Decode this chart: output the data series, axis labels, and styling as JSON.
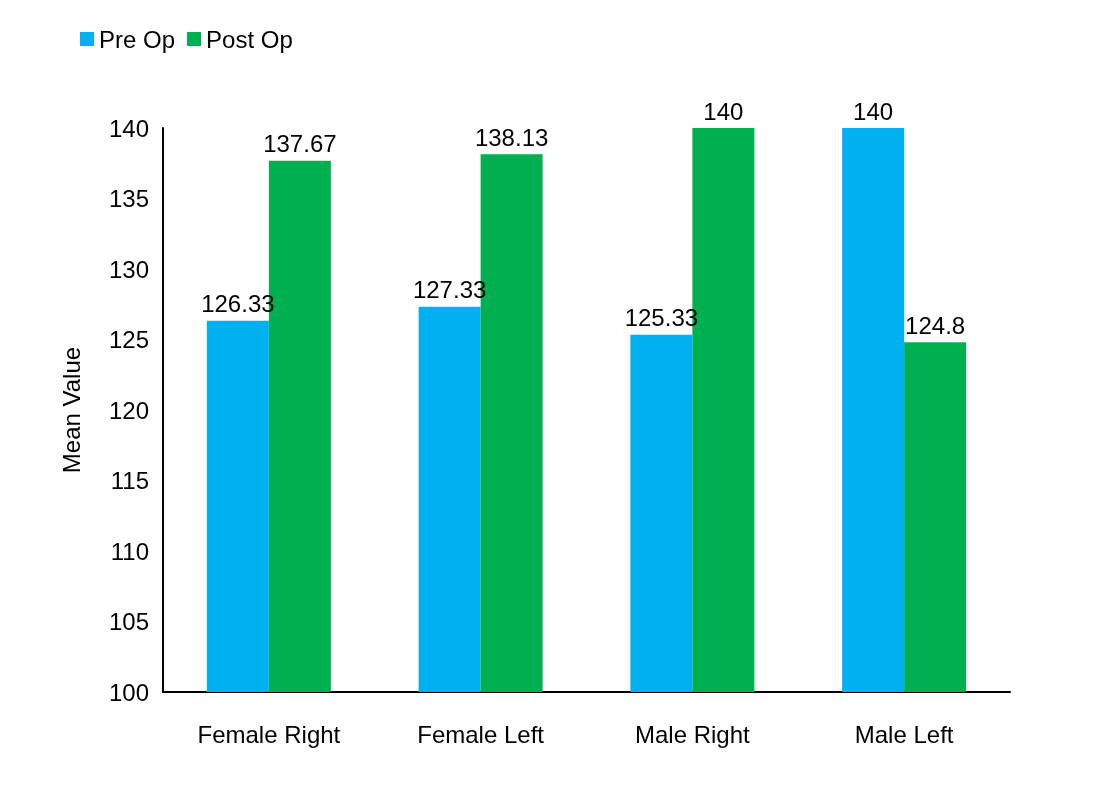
{
  "chart_data": {
    "type": "bar",
    "ylabel": "Mean Value",
    "categories": [
      "Female Right",
      "Female Left",
      "Male Right",
      "Male Left"
    ],
    "series": [
      {
        "name": "Pre Op",
        "color": "#00b0f0",
        "values": [
          126.33,
          127.33,
          125.33,
          140
        ]
      },
      {
        "name": "Post Op",
        "color": "#00b050",
        "values": [
          137.67,
          138.13,
          140,
          124.8
        ]
      }
    ],
    "ylim": [
      100,
      140
    ],
    "yticks": [
      100,
      105,
      110,
      115,
      120,
      125,
      130,
      135,
      140
    ],
    "data_labels": true,
    "legend": "top left",
    "grid": false
  }
}
